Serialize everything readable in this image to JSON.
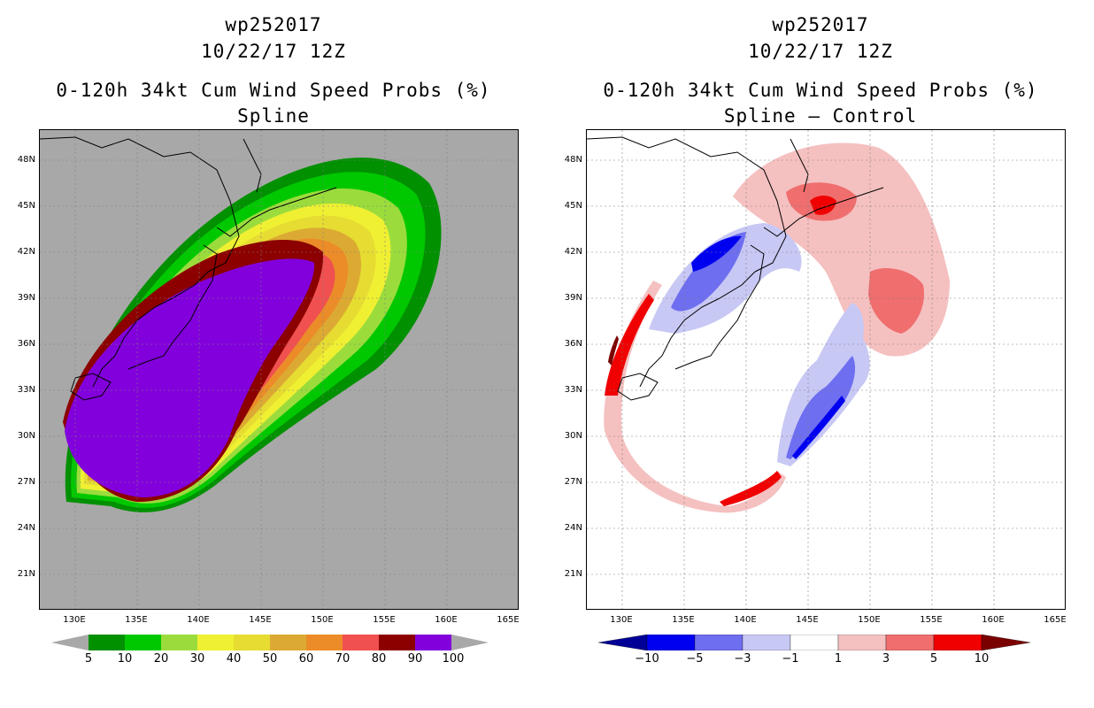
{
  "left_panel": {
    "storm_id": "wp252017",
    "datetime": "10/22/17 12Z",
    "product": "0-120h 34kt Cum Wind Speed Probs (%)",
    "subtitle": "Spline",
    "colorbar": {
      "labels": [
        "5",
        "10",
        "20",
        "30",
        "40",
        "50",
        "60",
        "70",
        "80",
        "90",
        "100"
      ],
      "colors": [
        "#009000",
        "#00c800",
        "#9bdc3c",
        "#f0f032",
        "#e6dc32",
        "#dcaa32",
        "#eb8c28",
        "#f05050",
        "#8c0000",
        "#8200dc"
      ]
    }
  },
  "right_panel": {
    "storm_id": "wp252017",
    "datetime": "10/22/17 12Z",
    "product": "0-120h 34kt Cum Wind Speed Probs (%)",
    "subtitle": "Spline – Control",
    "colorbar": {
      "labels": [
        "−10",
        "−5",
        "−3",
        "−1",
        "1",
        "3",
        "5",
        "10"
      ],
      "colors": [
        "#000096",
        "#0000f0",
        "#6e6ef0",
        "#c8c8f5",
        "#ffffff",
        "#f5c0c0",
        "#f06e6e",
        "#f00000",
        "#7a0000"
      ]
    }
  },
  "axes": {
    "lat_labels": [
      "48N",
      "45N",
      "42N",
      "39N",
      "36N",
      "33N",
      "30N",
      "27N",
      "24N",
      "21N"
    ],
    "lon_labels": [
      "130E",
      "135E",
      "140E",
      "145E",
      "150E",
      "155E",
      "160E",
      "165E"
    ]
  }
}
